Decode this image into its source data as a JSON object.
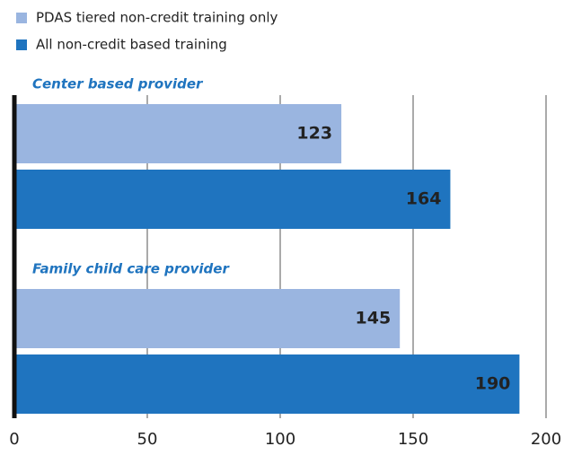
{
  "chart_data": {
    "type": "bar",
    "orientation": "horizontal",
    "categories": [
      "Center based provider",
      "Family child care provider"
    ],
    "series": [
      {
        "name": "PDAS tiered non-credit training only",
        "color": "#9ab5e0",
        "values": [
          123,
          145
        ]
      },
      {
        "name": "All non-credit based training",
        "color": "#1f74bf",
        "values": [
          164,
          190
        ]
      }
    ],
    "xlim": [
      0,
      200
    ],
    "xticks": [
      0,
      50,
      100,
      150,
      200
    ],
    "grid": true,
    "legend": "top-left"
  }
}
